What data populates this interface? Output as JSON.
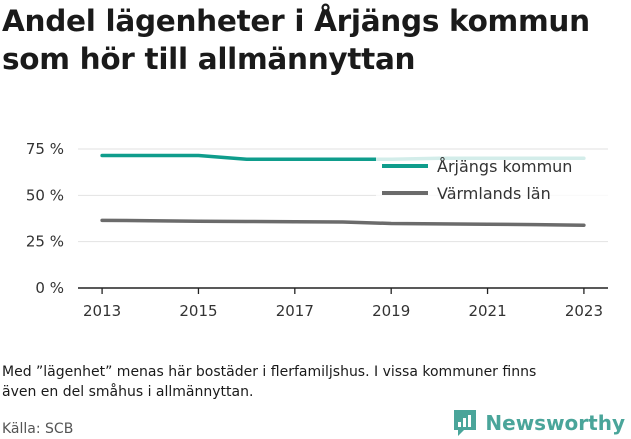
{
  "title_lines": [
    "Andel lägenheter i Årjängs kommun",
    "som hör till allmännyttan"
  ],
  "chart_data": {
    "type": "line",
    "title": "Andel lägenheter i Årjängs kommun som hör till allmännyttan",
    "x": [
      2013,
      2014,
      2015,
      2016,
      2017,
      2018,
      2019,
      2020,
      2021,
      2022,
      2023
    ],
    "x_tick_labels": [
      "2013",
      "2015",
      "2017",
      "2019",
      "2021",
      "2023"
    ],
    "y_tick_labels": [
      "0 %",
      "25 %",
      "50 %",
      "75 %"
    ],
    "ylim": [
      0,
      75
    ],
    "grid": true,
    "legend_position": "top-right",
    "series": [
      {
        "name": "Årjängs kommun",
        "color": "#0f9d8c",
        "values": [
          71.5,
          71.5,
          71.5,
          69.5,
          69.5,
          69.5,
          69.5,
          70,
          70,
          70,
          70
        ]
      },
      {
        "name": "Värmlands län",
        "color": "#6b6b6b",
        "values": [
          36.5,
          36.3,
          36,
          35.9,
          35.8,
          35.6,
          34.8,
          34.6,
          34.4,
          34.2,
          33.9
        ]
      }
    ]
  },
  "note_lines": [
    "Med ”lägenhet” menas här bostäder i flerfamiljshus. I vissa kommuner finns",
    "även en del småhus i allmännyttan."
  ],
  "source": "Källa: SCB",
  "brand": {
    "name": "Newsworthy",
    "color": "#4aa59a",
    "icon": "newsworthy-logo-icon"
  }
}
